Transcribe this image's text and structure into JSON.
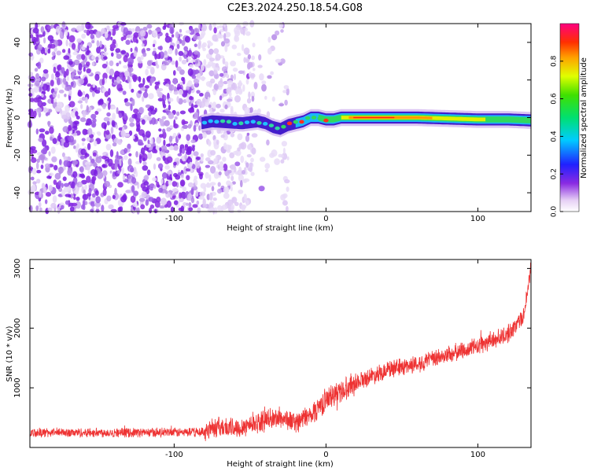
{
  "title": "C2E3.2024.250.18.54.G08",
  "chart_data": [
    {
      "type": "heatmap",
      "xlabel": "Height of straight line (km)",
      "ylabel": "Frequency (Hz)",
      "xlim": [
        -195,
        135
      ],
      "ylim": [
        -50,
        50
      ],
      "x_ticks": [
        -100,
        0,
        100
      ],
      "y_ticks": [
        -40,
        -20,
        0,
        20,
        40
      ],
      "colorbar": {
        "label": "Normalized spectral amplitude",
        "range": [
          0,
          1
        ],
        "ticks": [
          0.0,
          0.2,
          0.4,
          0.6,
          0.8
        ]
      },
      "signal_line": {
        "x": [
          -82,
          -75,
          -65,
          -55,
          -45,
          -40,
          -35,
          -30,
          -25,
          -20,
          -15,
          -10,
          -5,
          0,
          5,
          10,
          20,
          40,
          60,
          80,
          100,
          120,
          135
        ],
        "y": [
          -3,
          -2,
          -2.5,
          -3,
          -2,
          -3,
          -5,
          -6,
          -4,
          -3,
          -2,
          0,
          0,
          -1,
          -1,
          0,
          0,
          0,
          0,
          -0.5,
          -1,
          -1,
          -1.5
        ]
      }
    },
    {
      "type": "line",
      "xlabel": "Height of straight line (km)",
      "ylabel": "SNR (10 * v/v)",
      "xlim": [
        -195,
        135
      ],
      "ylim": [
        0,
        3150
      ],
      "x_ticks": [
        -100,
        0,
        100
      ],
      "y_ticks": [
        1000,
        2000,
        3000
      ],
      "color": "#ee3333",
      "trend": {
        "x": [
          -195,
          -150,
          -100,
          -80,
          -75,
          -60,
          -40,
          -30,
          -20,
          -10,
          0,
          10,
          20,
          40,
          60,
          80,
          100,
          120,
          130,
          135
        ],
        "y": [
          250,
          250,
          250,
          260,
          350,
          320,
          450,
          500,
          420,
          550,
          800,
          950,
          1100,
          1300,
          1400,
          1550,
          1700,
          1900,
          2200,
          3000
        ]
      }
    }
  ]
}
